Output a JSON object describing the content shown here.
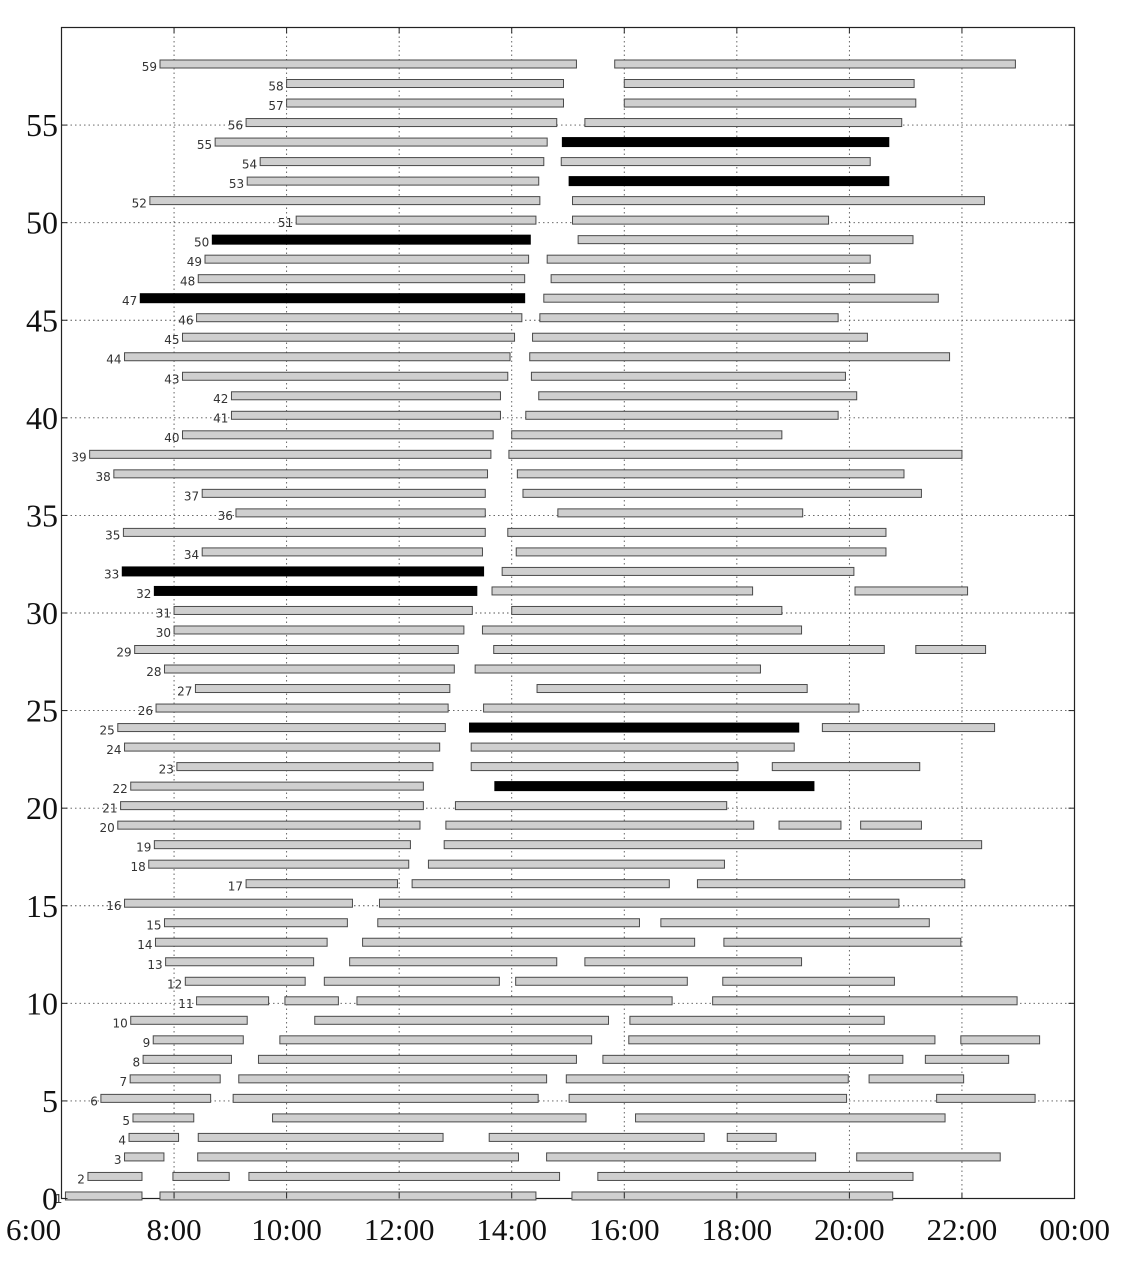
{
  "chart_data": {
    "type": "gantt",
    "title": "",
    "xlabel": "",
    "ylabel": "",
    "xlim": [
      6,
      24
    ],
    "ylim": [
      0,
      60
    ],
    "grid": true,
    "x_ticks": [
      {
        "value": 6,
        "label": "6:00"
      },
      {
        "value": 8,
        "label": "8:00"
      },
      {
        "value": 10,
        "label": "10:00"
      },
      {
        "value": 12,
        "label": "12:00"
      },
      {
        "value": 14,
        "label": "14:00"
      },
      {
        "value": 16,
        "label": "16:00"
      },
      {
        "value": 18,
        "label": "18:00"
      },
      {
        "value": 20,
        "label": "20:00"
      },
      {
        "value": 22,
        "label": "22:00"
      },
      {
        "value": 24,
        "label": "00:00"
      }
    ],
    "y_ticks": [
      {
        "value": 0,
        "label": "0"
      },
      {
        "value": 5,
        "label": "5"
      },
      {
        "value": 10,
        "label": "10"
      },
      {
        "value": 15,
        "label": "15"
      },
      {
        "value": 20,
        "label": "20"
      },
      {
        "value": 25,
        "label": "25"
      },
      {
        "value": 30,
        "label": "30"
      },
      {
        "value": 35,
        "label": "35"
      },
      {
        "value": 40,
        "label": "40"
      },
      {
        "value": 45,
        "label": "45"
      },
      {
        "value": 50,
        "label": "50"
      },
      {
        "value": 55,
        "label": "55"
      }
    ],
    "colors": {
      "normal": "#cfcfcf",
      "highlight": "#000000"
    },
    "rows": [
      {
        "id": 1,
        "label": "1",
        "bars": [
          [
            6.07,
            7.43,
            "normal"
          ],
          [
            7.75,
            14.43,
            "normal"
          ],
          [
            15.07,
            20.77,
            "normal"
          ]
        ]
      },
      {
        "id": 2,
        "label": "2",
        "bars": [
          [
            6.47,
            7.43,
            "normal"
          ],
          [
            7.98,
            8.98,
            "normal"
          ],
          [
            9.33,
            14.85,
            "normal"
          ],
          [
            15.53,
            21.13,
            "normal"
          ]
        ]
      },
      {
        "id": 3,
        "label": "3",
        "bars": [
          [
            7.12,
            7.82,
            "normal"
          ],
          [
            8.42,
            14.12,
            "normal"
          ],
          [
            14.62,
            19.4,
            "normal"
          ],
          [
            20.13,
            22.68,
            "normal"
          ]
        ]
      },
      {
        "id": 4,
        "label": "4",
        "bars": [
          [
            7.2,
            8.08,
            "normal"
          ],
          [
            8.43,
            12.78,
            "normal"
          ],
          [
            13.6,
            17.42,
            "normal"
          ],
          [
            17.83,
            18.7,
            "normal"
          ]
        ]
      },
      {
        "id": 5,
        "label": "5",
        "bars": [
          [
            7.27,
            8.35,
            "normal"
          ],
          [
            9.75,
            15.32,
            "normal"
          ],
          [
            16.2,
            21.7,
            "normal"
          ]
        ]
      },
      {
        "id": 6,
        "label": "6",
        "bars": [
          [
            6.7,
            8.65,
            "normal"
          ],
          [
            9.05,
            14.47,
            "normal"
          ],
          [
            15.02,
            19.95,
            "normal"
          ],
          [
            21.55,
            23.3,
            "normal"
          ]
        ]
      },
      {
        "id": 7,
        "label": "7",
        "bars": [
          [
            7.22,
            8.82,
            "normal"
          ],
          [
            9.15,
            14.62,
            "normal"
          ],
          [
            14.97,
            19.98,
            "normal"
          ],
          [
            20.35,
            22.03,
            "normal"
          ]
        ]
      },
      {
        "id": 8,
        "label": "8",
        "bars": [
          [
            7.45,
            9.02,
            "normal"
          ],
          [
            9.5,
            15.15,
            "normal"
          ],
          [
            15.62,
            20.95,
            "normal"
          ],
          [
            21.35,
            22.83,
            "normal"
          ]
        ]
      },
      {
        "id": 9,
        "label": "9",
        "bars": [
          [
            7.63,
            9.23,
            "normal"
          ],
          [
            9.88,
            15.42,
            "normal"
          ],
          [
            16.08,
            21.52,
            "normal"
          ],
          [
            21.98,
            23.38,
            "normal"
          ]
        ]
      },
      {
        "id": 10,
        "label": "10",
        "bars": [
          [
            7.23,
            9.3,
            "normal"
          ],
          [
            10.5,
            15.72,
            "normal"
          ],
          [
            16.1,
            20.62,
            "normal"
          ]
        ]
      },
      {
        "id": 11,
        "label": "11",
        "bars": [
          [
            8.4,
            9.68,
            "normal"
          ],
          [
            9.97,
            10.92,
            "normal"
          ],
          [
            11.25,
            16.85,
            "normal"
          ],
          [
            17.57,
            22.98,
            "normal"
          ]
        ]
      },
      {
        "id": 12,
        "label": "12",
        "bars": [
          [
            8.2,
            10.33,
            "normal"
          ],
          [
            10.67,
            13.78,
            "normal"
          ],
          [
            14.07,
            17.12,
            "normal"
          ],
          [
            17.75,
            20.8,
            "normal"
          ]
        ]
      },
      {
        "id": 13,
        "label": "13",
        "bars": [
          [
            7.85,
            10.48,
            "normal"
          ],
          [
            11.12,
            14.8,
            "normal"
          ],
          [
            15.3,
            19.15,
            "normal"
          ]
        ]
      },
      {
        "id": 14,
        "label": "14",
        "bars": [
          [
            7.67,
            10.72,
            "normal"
          ],
          [
            11.35,
            17.25,
            "normal"
          ],
          [
            17.77,
            21.98,
            "normal"
          ]
        ]
      },
      {
        "id": 15,
        "label": "15",
        "bars": [
          [
            7.83,
            11.08,
            "normal"
          ],
          [
            11.62,
            16.27,
            "normal"
          ],
          [
            16.65,
            21.42,
            "normal"
          ]
        ]
      },
      {
        "id": 16,
        "label": "16",
        "bars": [
          [
            7.12,
            11.17,
            "normal"
          ],
          [
            11.65,
            20.88,
            "normal"
          ]
        ]
      },
      {
        "id": 17,
        "label": "17",
        "bars": [
          [
            9.28,
            11.97,
            "normal"
          ],
          [
            12.23,
            16.8,
            "normal"
          ],
          [
            17.3,
            22.05,
            "normal"
          ]
        ]
      },
      {
        "id": 18,
        "label": "18",
        "bars": [
          [
            7.55,
            12.17,
            "normal"
          ],
          [
            12.52,
            17.78,
            "normal"
          ]
        ]
      },
      {
        "id": 19,
        "label": "19",
        "bars": [
          [
            7.65,
            12.2,
            "normal"
          ],
          [
            12.8,
            22.35,
            "normal"
          ]
        ]
      },
      {
        "id": 20,
        "label": "20",
        "bars": [
          [
            7.0,
            12.37,
            "normal"
          ],
          [
            12.83,
            18.3,
            "normal"
          ],
          [
            18.75,
            19.85,
            "normal"
          ],
          [
            20.2,
            21.28,
            "normal"
          ]
        ]
      },
      {
        "id": 21,
        "label": "21",
        "bars": [
          [
            7.05,
            12.43,
            "normal"
          ],
          [
            13.0,
            17.82,
            "normal"
          ]
        ]
      },
      {
        "id": 22,
        "label": "22",
        "bars": [
          [
            7.23,
            12.43,
            "normal"
          ],
          [
            13.7,
            19.37,
            "highlight"
          ]
        ]
      },
      {
        "id": 23,
        "label": "23",
        "bars": [
          [
            8.05,
            12.6,
            "normal"
          ],
          [
            13.28,
            18.02,
            "normal"
          ],
          [
            18.63,
            21.25,
            "normal"
          ]
        ]
      },
      {
        "id": 24,
        "label": "24",
        "bars": [
          [
            7.12,
            12.72,
            "normal"
          ],
          [
            13.28,
            19.02,
            "normal"
          ]
        ]
      },
      {
        "id": 25,
        "label": "25",
        "bars": [
          [
            7.0,
            12.82,
            "normal"
          ],
          [
            13.25,
            19.1,
            "highlight"
          ],
          [
            19.52,
            22.58,
            "normal"
          ]
        ]
      },
      {
        "id": 26,
        "label": "26",
        "bars": [
          [
            7.68,
            12.87,
            "normal"
          ],
          [
            13.5,
            20.17,
            "normal"
          ]
        ]
      },
      {
        "id": 27,
        "label": "27",
        "bars": [
          [
            8.38,
            12.9,
            "normal"
          ],
          [
            14.45,
            19.25,
            "normal"
          ]
        ]
      },
      {
        "id": 28,
        "label": "28",
        "bars": [
          [
            7.83,
            12.98,
            "normal"
          ],
          [
            13.35,
            18.42,
            "normal"
          ]
        ]
      },
      {
        "id": 29,
        "label": "29",
        "bars": [
          [
            7.3,
            13.05,
            "normal"
          ],
          [
            13.68,
            20.62,
            "normal"
          ],
          [
            21.18,
            22.42,
            "normal"
          ]
        ]
      },
      {
        "id": 30,
        "label": "30",
        "bars": [
          [
            8.0,
            13.15,
            "normal"
          ],
          [
            13.48,
            19.15,
            "normal"
          ]
        ]
      },
      {
        "id": 31,
        "label": "31",
        "bars": [
          [
            8.0,
            13.3,
            "normal"
          ],
          [
            14.0,
            18.8,
            "normal"
          ]
        ]
      },
      {
        "id": 32,
        "label": "32",
        "bars": [
          [
            7.65,
            13.38,
            "highlight"
          ],
          [
            13.65,
            18.28,
            "normal"
          ],
          [
            20.1,
            22.1,
            "normal"
          ]
        ]
      },
      {
        "id": 33,
        "label": "33",
        "bars": [
          [
            7.08,
            13.5,
            "highlight"
          ],
          [
            13.83,
            20.08,
            "normal"
          ]
        ]
      },
      {
        "id": 34,
        "label": "34",
        "bars": [
          [
            8.5,
            13.48,
            "normal"
          ],
          [
            14.08,
            20.65,
            "normal"
          ]
        ]
      },
      {
        "id": 35,
        "label": "35",
        "bars": [
          [
            7.1,
            13.53,
            "normal"
          ],
          [
            13.93,
            20.65,
            "normal"
          ]
        ]
      },
      {
        "id": 36,
        "label": "36",
        "bars": [
          [
            9.1,
            13.53,
            "normal"
          ],
          [
            14.82,
            19.17,
            "normal"
          ]
        ]
      },
      {
        "id": 37,
        "label": "37",
        "bars": [
          [
            8.5,
            13.53,
            "normal"
          ],
          [
            14.2,
            21.28,
            "normal"
          ]
        ]
      },
      {
        "id": 38,
        "label": "38",
        "bars": [
          [
            6.93,
            13.57,
            "normal"
          ],
          [
            14.1,
            20.97,
            "normal"
          ]
        ]
      },
      {
        "id": 39,
        "label": "39",
        "bars": [
          [
            6.5,
            13.63,
            "normal"
          ],
          [
            13.95,
            22.0,
            "normal"
          ]
        ]
      },
      {
        "id": 40,
        "label": "40",
        "bars": [
          [
            8.15,
            13.67,
            "normal"
          ],
          [
            14.0,
            18.8,
            "normal"
          ]
        ]
      },
      {
        "id": 41,
        "label": "41",
        "bars": [
          [
            9.02,
            13.8,
            "normal"
          ],
          [
            14.25,
            19.8,
            "normal"
          ]
        ]
      },
      {
        "id": 42,
        "label": "42",
        "bars": [
          [
            9.02,
            13.8,
            "normal"
          ],
          [
            14.48,
            20.13,
            "normal"
          ]
        ]
      },
      {
        "id": 43,
        "label": "43",
        "bars": [
          [
            8.15,
            13.93,
            "normal"
          ],
          [
            14.35,
            19.93,
            "normal"
          ]
        ]
      },
      {
        "id": 44,
        "label": "44",
        "bars": [
          [
            7.12,
            13.97,
            "normal"
          ],
          [
            14.32,
            21.78,
            "normal"
          ]
        ]
      },
      {
        "id": 45,
        "label": "45",
        "bars": [
          [
            8.15,
            14.05,
            "normal"
          ],
          [
            14.37,
            20.32,
            "normal"
          ]
        ]
      },
      {
        "id": 46,
        "label": "46",
        "bars": [
          [
            8.4,
            14.18,
            "normal"
          ],
          [
            14.5,
            19.8,
            "normal"
          ]
        ]
      },
      {
        "id": 47,
        "label": "47",
        "bars": [
          [
            7.4,
            14.23,
            "highlight"
          ],
          [
            14.57,
            21.58,
            "normal"
          ]
        ]
      },
      {
        "id": 48,
        "label": "48",
        "bars": [
          [
            8.43,
            14.23,
            "normal"
          ],
          [
            14.7,
            20.45,
            "normal"
          ]
        ]
      },
      {
        "id": 49,
        "label": "49",
        "bars": [
          [
            8.55,
            14.3,
            "normal"
          ],
          [
            14.63,
            20.37,
            "normal"
          ]
        ]
      },
      {
        "id": 50,
        "label": "50",
        "bars": [
          [
            8.68,
            14.33,
            "highlight"
          ],
          [
            15.18,
            21.13,
            "normal"
          ]
        ]
      },
      {
        "id": 51,
        "label": "51",
        "bars": [
          [
            10.17,
            14.43,
            "normal"
          ],
          [
            15.08,
            19.63,
            "normal"
          ]
        ]
      },
      {
        "id": 52,
        "label": "52",
        "bars": [
          [
            7.57,
            14.5,
            "normal"
          ],
          [
            15.08,
            22.4,
            "normal"
          ]
        ]
      },
      {
        "id": 53,
        "label": "53",
        "bars": [
          [
            9.3,
            14.48,
            "normal"
          ],
          [
            15.02,
            20.7,
            "highlight"
          ]
        ]
      },
      {
        "id": 54,
        "label": "54",
        "bars": [
          [
            9.53,
            14.57,
            "normal"
          ],
          [
            14.88,
            20.37,
            "normal"
          ]
        ]
      },
      {
        "id": 55,
        "label": "55",
        "bars": [
          [
            8.73,
            14.63,
            "normal"
          ],
          [
            14.9,
            20.7,
            "highlight"
          ]
        ]
      },
      {
        "id": 56,
        "label": "56",
        "bars": [
          [
            9.28,
            14.8,
            "normal"
          ],
          [
            15.3,
            20.93,
            "normal"
          ]
        ]
      },
      {
        "id": 57,
        "label": "57",
        "bars": [
          [
            10.0,
            14.92,
            "normal"
          ],
          [
            16.0,
            21.18,
            "normal"
          ]
        ]
      },
      {
        "id": 58,
        "label": "58",
        "bars": [
          [
            10.0,
            14.92,
            "normal"
          ],
          [
            16.0,
            21.15,
            "normal"
          ]
        ]
      },
      {
        "id": 59,
        "label": "59",
        "bars": [
          [
            7.75,
            15.15,
            "normal"
          ],
          [
            15.83,
            22.95,
            "normal"
          ]
        ]
      }
    ]
  }
}
